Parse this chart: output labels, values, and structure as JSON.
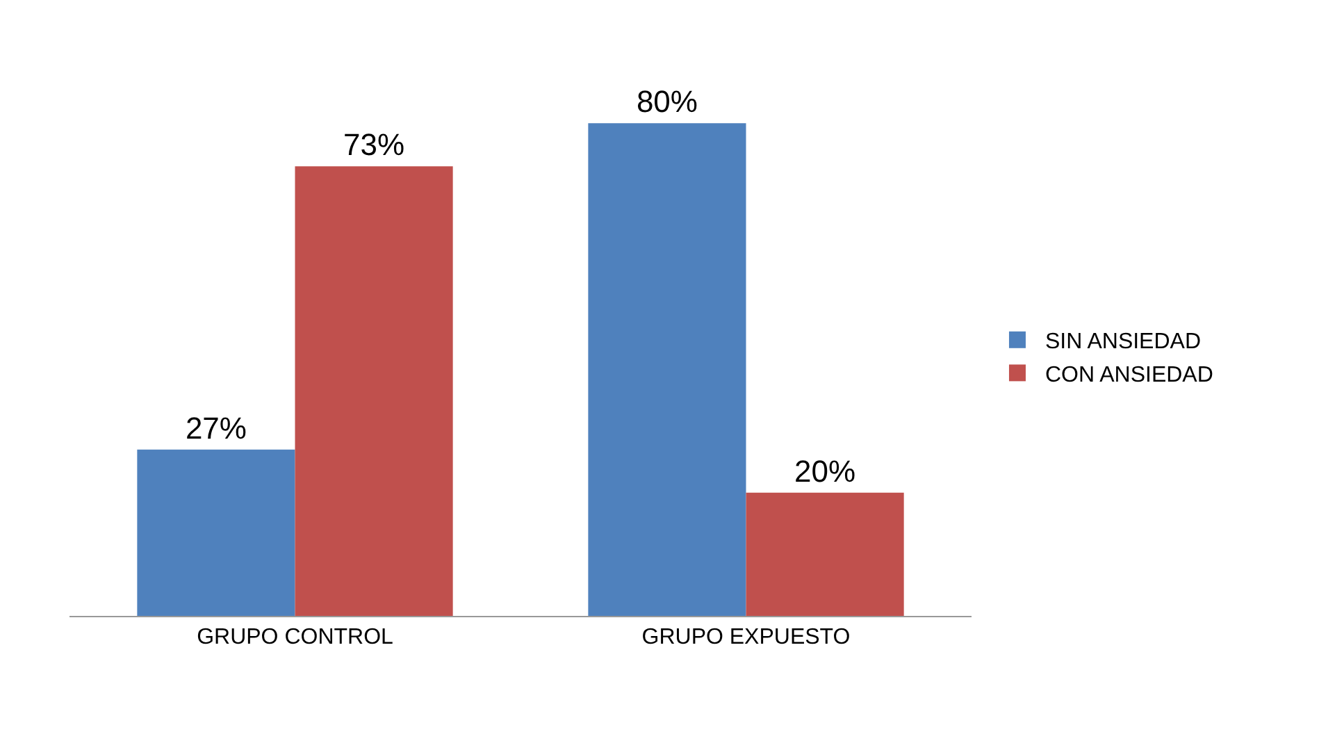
{
  "chart_data": {
    "type": "bar",
    "categories": [
      "GRUPO CONTROL",
      "GRUPO EXPUESTO"
    ],
    "series": [
      {
        "name": "SIN ANSIEDAD",
        "color": "#4f81bd",
        "values": [
          27,
          80
        ],
        "value_labels": [
          "27%",
          "80%"
        ]
      },
      {
        "name": "CON ANSIEDAD",
        "color": "#c0504d",
        "values": [
          73,
          20
        ],
        "value_labels": [
          "73%",
          "20%"
        ]
      }
    ],
    "legend": "right",
    "grid": false
  }
}
